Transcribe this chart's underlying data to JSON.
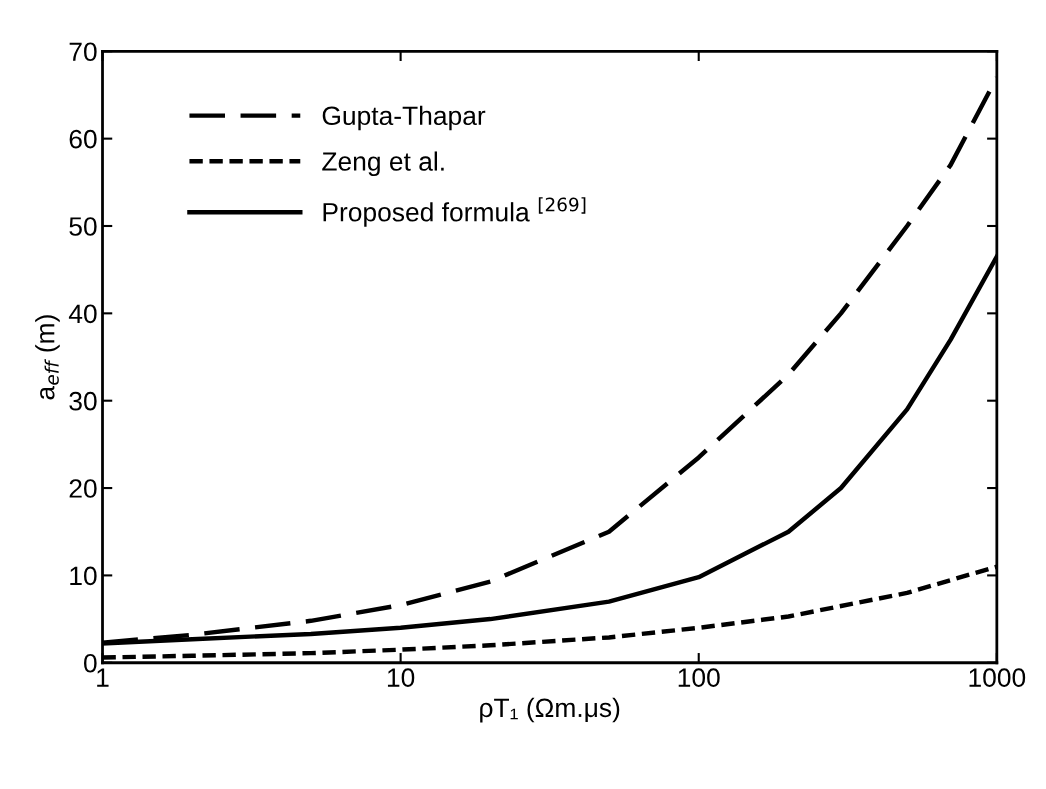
{
  "chart_data": {
    "type": "line",
    "log": "x",
    "xlabel": "ρT₁ (Ωm.μs)",
    "ylabel": "a$_{eff}$ (m)",
    "xlim": [
      1,
      1000
    ],
    "xticks": [
      1,
      10,
      100,
      1000
    ],
    "ylim": [
      0,
      70
    ],
    "yticks": [
      0,
      10,
      20,
      30,
      40,
      50,
      60,
      70
    ],
    "grid": false,
    "legend": "top left",
    "marker": "none",
    "series": [
      {
        "name": "Gupta-Thapar",
        "color": "#000000",
        "line_style": "dashed",
        "x": [
          1,
          2,
          5,
          10,
          20,
          50,
          100,
          200,
          300,
          500,
          700,
          1000
        ],
        "values": [
          2.3,
          3.2,
          4.8,
          6.6,
          9.3,
          15,
          23.5,
          33,
          40,
          50,
          57,
          67
        ]
      },
      {
        "name": "Zeng et al.",
        "color": "#000000",
        "line_style": "dotted",
        "x": [
          1,
          2,
          5,
          10,
          20,
          50,
          100,
          200,
          500,
          1000
        ],
        "values": [
          0.6,
          0.8,
          1.1,
          1.5,
          2.0,
          2.9,
          4.0,
          5.3,
          8.0,
          11
        ]
      },
      {
        "name": "Proposed formula $^{[269]}$",
        "color": "#000000",
        "line_style": "solid",
        "x": [
          1,
          2,
          5,
          10,
          20,
          50,
          100,
          200,
          300,
          500,
          700,
          1000
        ],
        "values": [
          2.2,
          2.7,
          3.3,
          4.0,
          5.0,
          7.0,
          9.8,
          15,
          20,
          29,
          37,
          46.5
        ]
      }
    ]
  }
}
